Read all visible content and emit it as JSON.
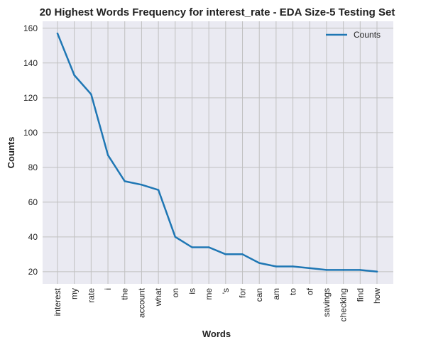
{
  "chart_data": {
    "type": "line",
    "title": "20 Highest Words Frequency for interest_rate - EDA Size-5 Testing Set",
    "xlabel": "Words",
    "ylabel": "Counts",
    "categories": [
      "interest",
      "my",
      "rate",
      "i",
      "the",
      "account",
      "what",
      "on",
      "is",
      "me",
      "'s",
      "for",
      "can",
      "am",
      "to",
      "of",
      "savings",
      "checking",
      "find",
      "how"
    ],
    "series": [
      {
        "name": "Counts",
        "values": [
          157,
          133,
          122,
          87,
          72,
          70,
          67,
          40,
          34,
          34,
          30,
          30,
          25,
          23,
          23,
          22,
          21,
          21,
          21,
          20
        ]
      }
    ],
    "ylim": [
      13,
      164
    ],
    "yticks": [
      20,
      40,
      60,
      80,
      100,
      120,
      140,
      160
    ],
    "grid": true,
    "legend": "top-right",
    "colors": {
      "line": "#1f77b4",
      "plot_background": "#eaeaf2",
      "grid": "#c0c0c0"
    }
  }
}
